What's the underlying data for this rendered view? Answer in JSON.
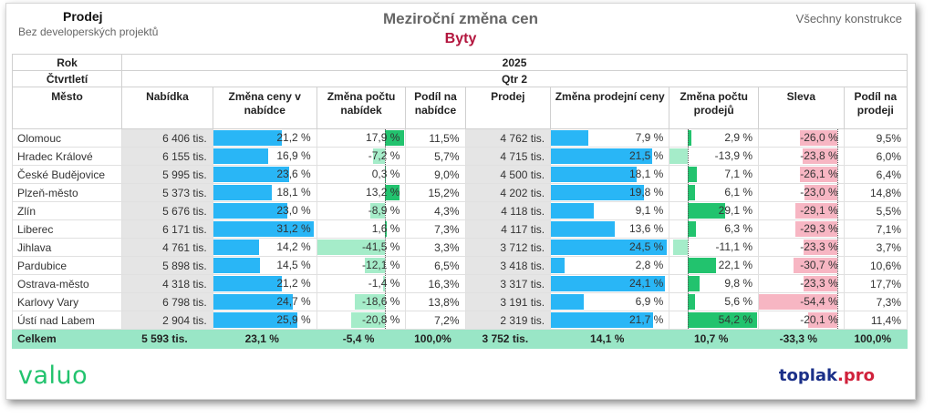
{
  "header": {
    "left_title": "Prodej",
    "left_subtitle": "Bez developerských projektů",
    "title": "Meziroční změna cen",
    "subtitle": "Byty",
    "right": "Všechny konstrukce"
  },
  "table": {
    "row_year_label": "Rok",
    "year": "2025",
    "row_quarter_label": "Čtvrtletí",
    "quarter": "Qtr 2",
    "columns": [
      "Město",
      "Nabídka",
      "Změna ceny v nabídce",
      "Změna počtu nabídek",
      "Podíl na nabídce",
      "Prodej",
      "Změna prodejní ceny",
      "Změna počtu prodejů",
      "Sleva",
      "Podíl na prodeji"
    ],
    "rows": [
      {
        "city": "Olomouc",
        "offer": "6 406 tis.",
        "offer_change": "21,2 %",
        "offer_count_change": "17,9 %",
        "offer_share": "11,5%",
        "sale": "4 762 tis.",
        "sale_change": "7,9 %",
        "sale_count_change": "2,9 %",
        "discount": "-26,0 %",
        "sale_share": "9,5%"
      },
      {
        "city": "Hradec Králové",
        "offer": "6 155 tis.",
        "offer_change": "16,9 %",
        "offer_count_change": "-7,2 %",
        "offer_share": "5,7%",
        "sale": "4 715 tis.",
        "sale_change": "21,5 %",
        "sale_count_change": "-13,9 %",
        "discount": "-23,8 %",
        "sale_share": "6,0%"
      },
      {
        "city": "České Budějovice",
        "offer": "5 995 tis.",
        "offer_change": "23,6 %",
        "offer_count_change": "0,3 %",
        "offer_share": "9,0%",
        "sale": "4 500 tis.",
        "sale_change": "18,1 %",
        "sale_count_change": "7,1 %",
        "discount": "-26,1 %",
        "sale_share": "6,4%"
      },
      {
        "city": "Plzeň-město",
        "offer": "5 373 tis.",
        "offer_change": "18,1 %",
        "offer_count_change": "13,2 %",
        "offer_share": "15,2%",
        "sale": "4 202 tis.",
        "sale_change": "19,8 %",
        "sale_count_change": "6,1 %",
        "discount": "-23,0 %",
        "sale_share": "14,8%"
      },
      {
        "city": "Zlín",
        "offer": "5 676 tis.",
        "offer_change": "23,0 %",
        "offer_count_change": "-8,9 %",
        "offer_share": "4,3%",
        "sale": "4 118 tis.",
        "sale_change": "9,1 %",
        "sale_count_change": "29,1 %",
        "discount": "-29,1 %",
        "sale_share": "5,5%"
      },
      {
        "city": "Liberec",
        "offer": "6 171 tis.",
        "offer_change": "31,2 %",
        "offer_count_change": "1,6 %",
        "offer_share": "7,3%",
        "sale": "4 117 tis.",
        "sale_change": "13,6 %",
        "sale_count_change": "6,3 %",
        "discount": "-29,3 %",
        "sale_share": "7,1%"
      },
      {
        "city": "Jihlava",
        "offer": "4 761 tis.",
        "offer_change": "14,2 %",
        "offer_count_change": "-41,5 %",
        "offer_share": "3,3%",
        "sale": "3 712 tis.",
        "sale_change": "24,5 %",
        "sale_count_change": "-11,1 %",
        "discount": "-23,3 %",
        "sale_share": "3,7%"
      },
      {
        "city": "Pardubice",
        "offer": "5 898 tis.",
        "offer_change": "14,5 %",
        "offer_count_change": "-12,1 %",
        "offer_share": "6,5%",
        "sale": "3 418 tis.",
        "sale_change": "2,8 %",
        "sale_count_change": "22,1 %",
        "discount": "-30,7 %",
        "sale_share": "10,6%"
      },
      {
        "city": "Ostrava-město",
        "offer": "4 318 tis.",
        "offer_change": "21,2 %",
        "offer_count_change": "-1,4 %",
        "offer_share": "16,3%",
        "sale": "3 317 tis.",
        "sale_change": "24,1 %",
        "sale_count_change": "9,8 %",
        "discount": "-23,3 %",
        "sale_share": "17,7%"
      },
      {
        "city": "Karlovy Vary",
        "offer": "6 798 tis.",
        "offer_change": "24,7 %",
        "offer_count_change": "-18,6 %",
        "offer_share": "13,8%",
        "sale": "3 191 tis.",
        "sale_change": "6,9 %",
        "sale_count_change": "5,6 %",
        "discount": "-54,4 %",
        "sale_share": "7,3%"
      },
      {
        "city": "Ústí nad Labem",
        "offer": "2 904 tis.",
        "offer_change": "25,9 %",
        "offer_count_change": "-20,8 %",
        "offer_share": "7,2%",
        "sale": "2 319 tis.",
        "sale_change": "21,7 %",
        "sale_count_change": "54,2 %",
        "discount": "-20,1 %",
        "sale_share": "11,4%"
      }
    ],
    "total": {
      "city": "Celkem",
      "offer": "5 593 tis.",
      "offer_change": "23,1 %",
      "offer_count_change": "-5,4 %",
      "offer_share": "100,0%",
      "sale": "3 752 tis.",
      "sale_change": "14,1 %",
      "sale_count_change": "10,7 %",
      "discount": "-33,3 %",
      "sale_share": "100,0%"
    }
  },
  "colors": {
    "blue_bar": "#29b6f6",
    "green_bar": "#22c36e",
    "light_green_bar": "#a5ecc9",
    "pink_bar": "#f7b6c3",
    "total_row": "#99e6c6",
    "subtitle": "#b3163e"
  },
  "logos": {
    "left": "valuo",
    "right_a": "toplak",
    "right_b": ".pro"
  }
}
